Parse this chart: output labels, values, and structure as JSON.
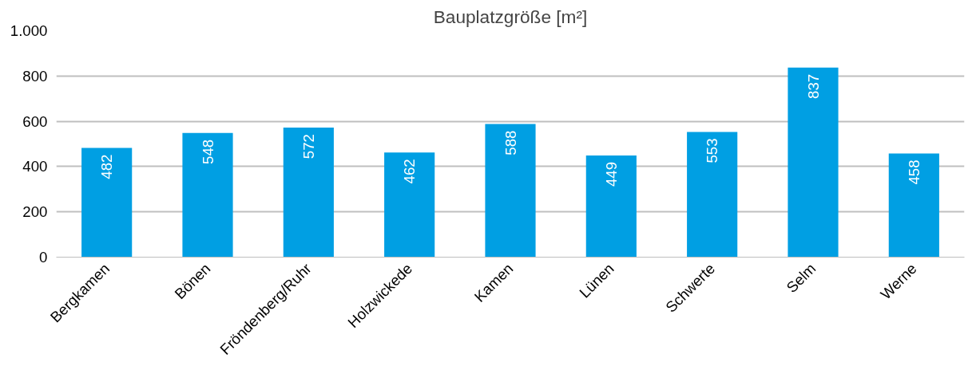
{
  "chart_data": {
    "type": "bar",
    "title": "Bauplatzgröße [m²]",
    "categories": [
      "Bergkamen",
      "Bönen",
      "Fröndenberg/Ruhr",
      "Holzwickede",
      "Kamen",
      "Lünen",
      "Schwerte",
      "Selm",
      "Werne"
    ],
    "values": [
      482,
      548,
      572,
      462,
      588,
      449,
      553,
      837,
      458
    ],
    "color": "#009fe3",
    "ylim": [
      0,
      1000
    ],
    "yticks": [
      0,
      200,
      400,
      600,
      800,
      {
        "value": 1000,
        "label": "1.000"
      }
    ],
    "grid": "y",
    "data_labels": true
  }
}
